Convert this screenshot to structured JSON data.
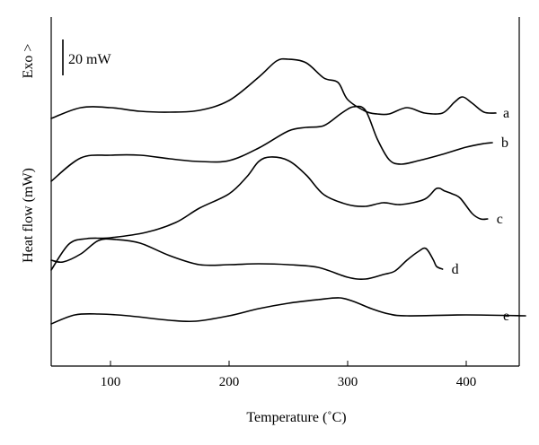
{
  "chart_data": {
    "type": "line",
    "xlabel": "Temperature (˚C)",
    "ylabel": "Heat flow (mW)",
    "exo_label": "Exo >",
    "scale_bar_label": "20 mW",
    "xlim": [
      50,
      450
    ],
    "x_ticks": [
      100,
      200,
      300,
      400
    ],
    "x_tick_labels": [
      "100",
      "200",
      "300",
      "400"
    ],
    "grid": false,
    "series": [
      {
        "name": "a",
        "points": [
          [
            50,
            -1.2
          ],
          [
            75,
            0.0
          ],
          [
            100,
            0.0
          ],
          [
            125,
            -0.4
          ],
          [
            150,
            -0.5
          ],
          [
            175,
            -0.3
          ],
          [
            200,
            0.8
          ],
          [
            225,
            3.4
          ],
          [
            240,
            5.2
          ],
          [
            250,
            5.4
          ],
          [
            265,
            5.0
          ],
          [
            280,
            3.3
          ],
          [
            292,
            2.8
          ],
          [
            300,
            0.9
          ],
          [
            315,
            -0.4
          ],
          [
            325,
            -0.7
          ],
          [
            335,
            -0.7
          ],
          [
            350,
            0.0
          ],
          [
            365,
            -0.6
          ],
          [
            380,
            -0.6
          ],
          [
            390,
            0.6
          ],
          [
            397,
            1.2
          ],
          [
            405,
            0.5
          ],
          [
            415,
            -0.5
          ],
          [
            425,
            -0.6
          ]
        ]
      },
      {
        "name": "b",
        "points": [
          [
            50,
            -2.2
          ],
          [
            75,
            0.4
          ],
          [
            100,
            0.7
          ],
          [
            125,
            0.7
          ],
          [
            150,
            0.3
          ],
          [
            175,
            0.0
          ],
          [
            200,
            0.1
          ],
          [
            225,
            1.5
          ],
          [
            250,
            3.4
          ],
          [
            265,
            3.8
          ],
          [
            280,
            4.0
          ],
          [
            295,
            5.4
          ],
          [
            305,
            6.1
          ],
          [
            315,
            5.7
          ],
          [
            325,
            2.5
          ],
          [
            335,
            0.2
          ],
          [
            345,
            -0.3
          ],
          [
            360,
            0.1
          ],
          [
            380,
            0.8
          ],
          [
            400,
            1.6
          ],
          [
            415,
            2.0
          ],
          [
            422,
            2.1
          ]
        ]
      },
      {
        "name": "c",
        "points": [
          [
            50,
            -5.3
          ],
          [
            65,
            -2.4
          ],
          [
            80,
            -1.8
          ],
          [
            100,
            -1.7
          ],
          [
            130,
            -1.1
          ],
          [
            155,
            0.0
          ],
          [
            175,
            1.6
          ],
          [
            200,
            3.2
          ],
          [
            215,
            5.1
          ],
          [
            225,
            6.8
          ],
          [
            235,
            7.3
          ],
          [
            250,
            6.9
          ],
          [
            265,
            5.3
          ],
          [
            280,
            3.1
          ],
          [
            300,
            2.0
          ],
          [
            315,
            1.8
          ],
          [
            330,
            2.2
          ],
          [
            345,
            2.0
          ],
          [
            365,
            2.6
          ],
          [
            375,
            3.8
          ],
          [
            382,
            3.5
          ],
          [
            388,
            3.2
          ],
          [
            395,
            2.7
          ],
          [
            405,
            1.0
          ],
          [
            412,
            0.4
          ],
          [
            418,
            0.4
          ]
        ]
      },
      {
        "name": "d",
        "points": [
          [
            50,
            0.5
          ],
          [
            60,
            0.3
          ],
          [
            75,
            1.2
          ],
          [
            90,
            2.7
          ],
          [
            105,
            2.8
          ],
          [
            125,
            2.4
          ],
          [
            150,
            1.0
          ],
          [
            175,
            0.0
          ],
          [
            200,
            0.0
          ],
          [
            225,
            0.1
          ],
          [
            250,
            0.0
          ],
          [
            275,
            -0.3
          ],
          [
            300,
            -1.4
          ],
          [
            315,
            -1.6
          ],
          [
            330,
            -1.1
          ],
          [
            340,
            -0.7
          ],
          [
            350,
            0.5
          ],
          [
            360,
            1.5
          ],
          [
            366,
            1.8
          ],
          [
            372,
            0.6
          ],
          [
            375,
            -0.2
          ],
          [
            380,
            -0.5
          ]
        ]
      },
      {
        "name": "e",
        "points": [
          [
            50,
            -0.9
          ],
          [
            70,
            0.1
          ],
          [
            90,
            0.2
          ],
          [
            115,
            0.0
          ],
          [
            150,
            -0.5
          ],
          [
            172,
            -0.6
          ],
          [
            200,
            0.0
          ],
          [
            225,
            0.8
          ],
          [
            250,
            1.4
          ],
          [
            275,
            1.8
          ],
          [
            293,
            2.0
          ],
          [
            305,
            1.6
          ],
          [
            320,
            0.8
          ],
          [
            335,
            0.2
          ],
          [
            350,
            0.0
          ],
          [
            400,
            0.1
          ],
          [
            450,
            0.0
          ]
        ]
      }
    ]
  }
}
